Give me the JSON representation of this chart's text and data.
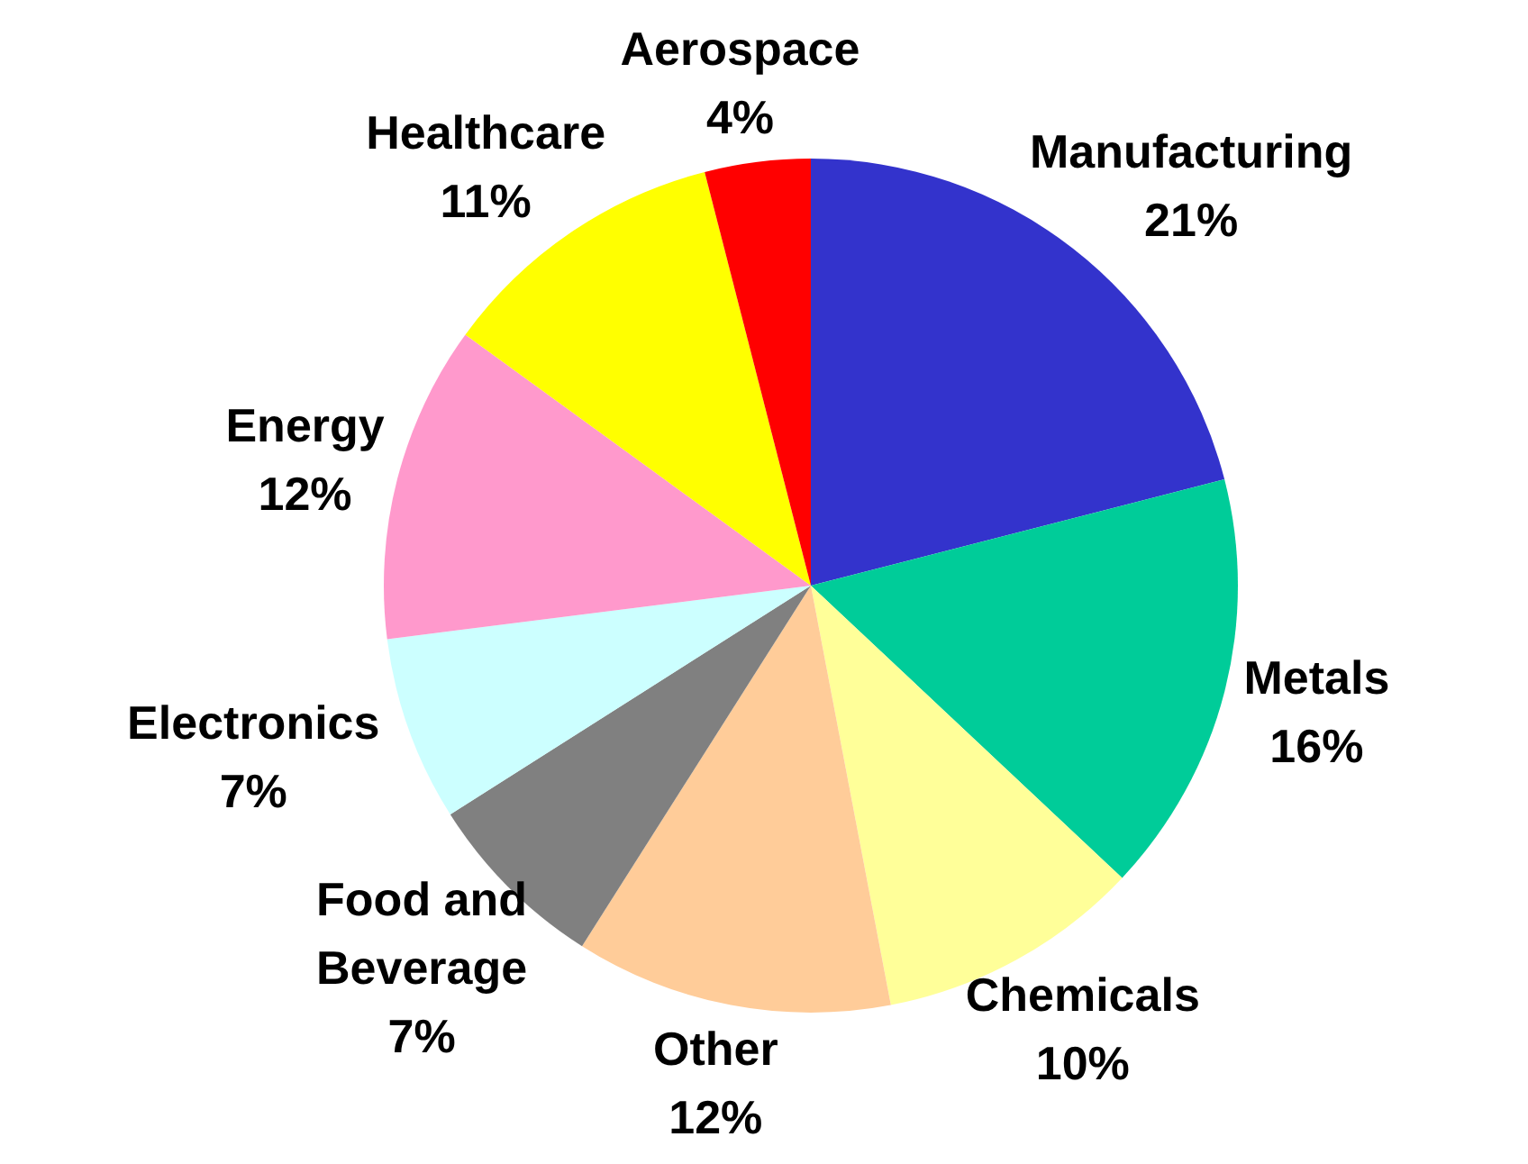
{
  "chart_data": {
    "type": "pie",
    "categories": [
      "Manufacturing",
      "Metals",
      "Chemicals",
      "Other",
      "Food and Beverage",
      "Electronics",
      "Energy",
      "Healthcare",
      "Aerospace"
    ],
    "values": [
      21,
      16,
      10,
      12,
      7,
      7,
      12,
      11,
      4
    ],
    "value_labels": [
      "21%",
      "16%",
      "10%",
      "12%",
      "7%",
      "7%",
      "12%",
      "11%",
      "4%"
    ],
    "colors": [
      "#3333cc",
      "#00cc99",
      "#ffff99",
      "#ffcc99",
      "#808080",
      "#ccffff",
      "#ff99cc",
      "#ffff00",
      "#ff0000"
    ]
  }
}
